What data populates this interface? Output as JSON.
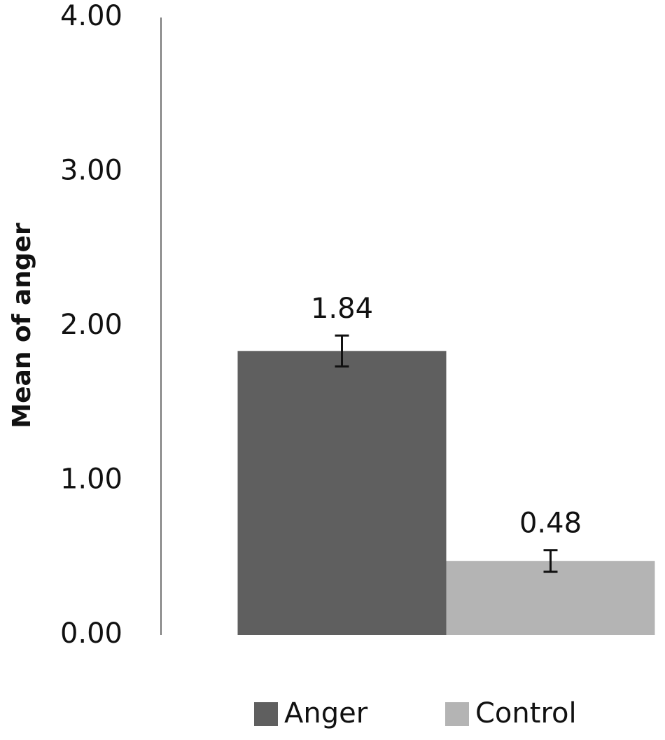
{
  "chart_data": {
    "type": "bar",
    "y_label": "Mean of anger",
    "categories": [
      null
    ],
    "series": [
      {
        "name": "Anger",
        "color": "#5f5f5f",
        "values": [
          1.84
        ],
        "errors": [
          0.1
        ]
      },
      {
        "name": "Control",
        "color": "#b4b4b4",
        "values": [
          0.48
        ],
        "errors": [
          0.07
        ]
      }
    ],
    "ylim": [
      0,
      4
    ],
    "yticks": [
      {
        "value": 0,
        "label": "0.00"
      },
      {
        "value": 1,
        "label": "1.00"
      },
      {
        "value": 2,
        "label": "2.00"
      },
      {
        "value": 3,
        "label": "3.00"
      },
      {
        "value": 4,
        "label": "4.00"
      }
    ],
    "grid": false,
    "legend": "bottom"
  }
}
